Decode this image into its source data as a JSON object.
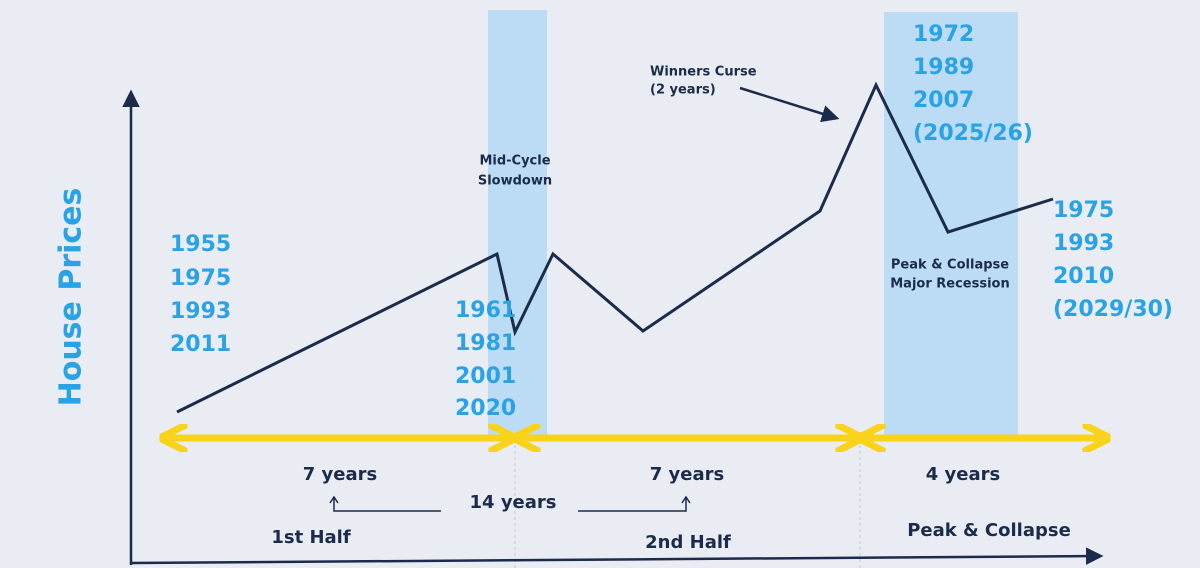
{
  "y_axis_label": "House Prices",
  "year_groups": [
    [
      "1955",
      "1975",
      "1993",
      "2011"
    ],
    [
      "1961",
      "1981",
      "2001",
      "2020"
    ],
    [
      "1972",
      "1989",
      "2007",
      "(2025/26)"
    ],
    [
      "1975",
      "1993",
      "2010",
      "(2029/30)"
    ]
  ],
  "annotations": {
    "mid_cycle": [
      "Mid-Cycle",
      "Slowdown"
    ],
    "winners_curse": [
      "Winners Curse",
      "(2 years)"
    ],
    "peak_collapse": [
      "Peak & Collapse",
      "Major Recession"
    ]
  },
  "durations": {
    "first": "7 years",
    "second": "7 years",
    "third": "4 years",
    "total": "14 years"
  },
  "phases": {
    "first": "1st Half",
    "second": "2nd Half",
    "third": "Peak & Collapse"
  }
}
